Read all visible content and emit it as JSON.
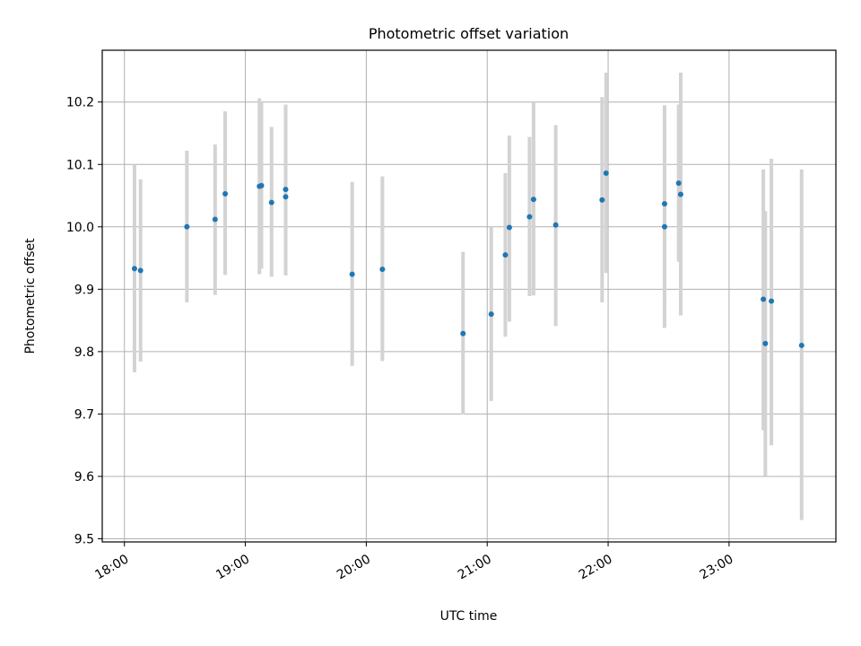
{
  "chart_data": {
    "type": "scatter",
    "title": "Photometric offset variation",
    "xlabel": "UTC time",
    "ylabel": "Photometric offset",
    "xlim": [
      "17:49",
      "23:53"
    ],
    "ylim": [
      9.495,
      10.283
    ],
    "x_ticks": [
      "18:00",
      "19:00",
      "20:00",
      "21:00",
      "22:00",
      "23:00"
    ],
    "y_ticks": [
      "9.5",
      "9.6",
      "9.7",
      "9.8",
      "9.9",
      "10.0",
      "10.1",
      "10.2"
    ],
    "grid": true,
    "colors": {
      "point": "#1f77b4",
      "error_bar": "#d3d3d3",
      "grid": "#b0b0b0",
      "axes": "#000000"
    },
    "points": [
      {
        "x": "18:05",
        "y": 9.933,
        "y_err_low": 9.767,
        "y_err_high": 10.1
      },
      {
        "x": "18:08",
        "y": 9.93,
        "y_err_low": 9.784,
        "y_err_high": 10.076
      },
      {
        "x": "18:31",
        "y": 10.0,
        "y_err_low": 9.879,
        "y_err_high": 10.122
      },
      {
        "x": "18:45",
        "y": 10.012,
        "y_err_low": 9.891,
        "y_err_high": 10.132
      },
      {
        "x": "18:50",
        "y": 10.053,
        "y_err_low": 9.923,
        "y_err_high": 10.185
      },
      {
        "x": "19:07",
        "y": 10.065,
        "y_err_low": 9.924,
        "y_err_high": 10.206
      },
      {
        "x": "19:08",
        "y": 10.066,
        "y_err_low": 9.933,
        "y_err_high": 10.199
      },
      {
        "x": "19:13",
        "y": 10.039,
        "y_err_low": 9.92,
        "y_err_high": 10.16
      },
      {
        "x": "19:20",
        "y": 10.06,
        "y_err_low": 9.922,
        "y_err_high": 10.196
      },
      {
        "x": "19:20",
        "y": 10.048,
        "y_err_low": 9.922,
        "y_err_high": 10.178
      },
      {
        "x": "19:53",
        "y": 9.924,
        "y_err_low": 9.777,
        "y_err_high": 10.072
      },
      {
        "x": "20:08",
        "y": 9.932,
        "y_err_low": 9.785,
        "y_err_high": 10.081
      },
      {
        "x": "20:48",
        "y": 9.829,
        "y_err_low": 9.699,
        "y_err_high": 9.96
      },
      {
        "x": "21:02",
        "y": 9.86,
        "y_err_low": 9.721,
        "y_err_high": 10.0
      },
      {
        "x": "21:09",
        "y": 9.955,
        "y_err_low": 9.824,
        "y_err_high": 10.086
      },
      {
        "x": "21:11",
        "y": 9.999,
        "y_err_low": 9.848,
        "y_err_high": 10.146
      },
      {
        "x": "21:21",
        "y": 10.016,
        "y_err_low": 9.889,
        "y_err_high": 10.144
      },
      {
        "x": "21:23",
        "y": 10.044,
        "y_err_low": 9.89,
        "y_err_high": 10.2
      },
      {
        "x": "21:34",
        "y": 10.003,
        "y_err_low": 9.841,
        "y_err_high": 10.163
      },
      {
        "x": "21:57",
        "y": 10.043,
        "y_err_low": 9.879,
        "y_err_high": 10.208
      },
      {
        "x": "21:59",
        "y": 10.086,
        "y_err_low": 9.926,
        "y_err_high": 10.247
      },
      {
        "x": "22:28",
        "y": 10.037,
        "y_err_low": 9.879,
        "y_err_high": 10.195
      },
      {
        "x": "22:28",
        "y": 10.0,
        "y_err_low": 9.838,
        "y_err_high": 10.163
      },
      {
        "x": "22:35",
        "y": 10.07,
        "y_err_low": 9.944,
        "y_err_high": 10.196
      },
      {
        "x": "22:36",
        "y": 10.052,
        "y_err_low": 9.858,
        "y_err_high": 10.247
      },
      {
        "x": "23:17",
        "y": 9.884,
        "y_err_low": 9.674,
        "y_err_high": 10.092
      },
      {
        "x": "23:18",
        "y": 9.813,
        "y_err_low": 9.601,
        "y_err_high": 10.025
      },
      {
        "x": "23:21",
        "y": 9.881,
        "y_err_low": 9.65,
        "y_err_high": 10.109
      },
      {
        "x": "23:36",
        "y": 9.81,
        "y_err_low": 9.53,
        "y_err_high": 10.092
      }
    ]
  }
}
